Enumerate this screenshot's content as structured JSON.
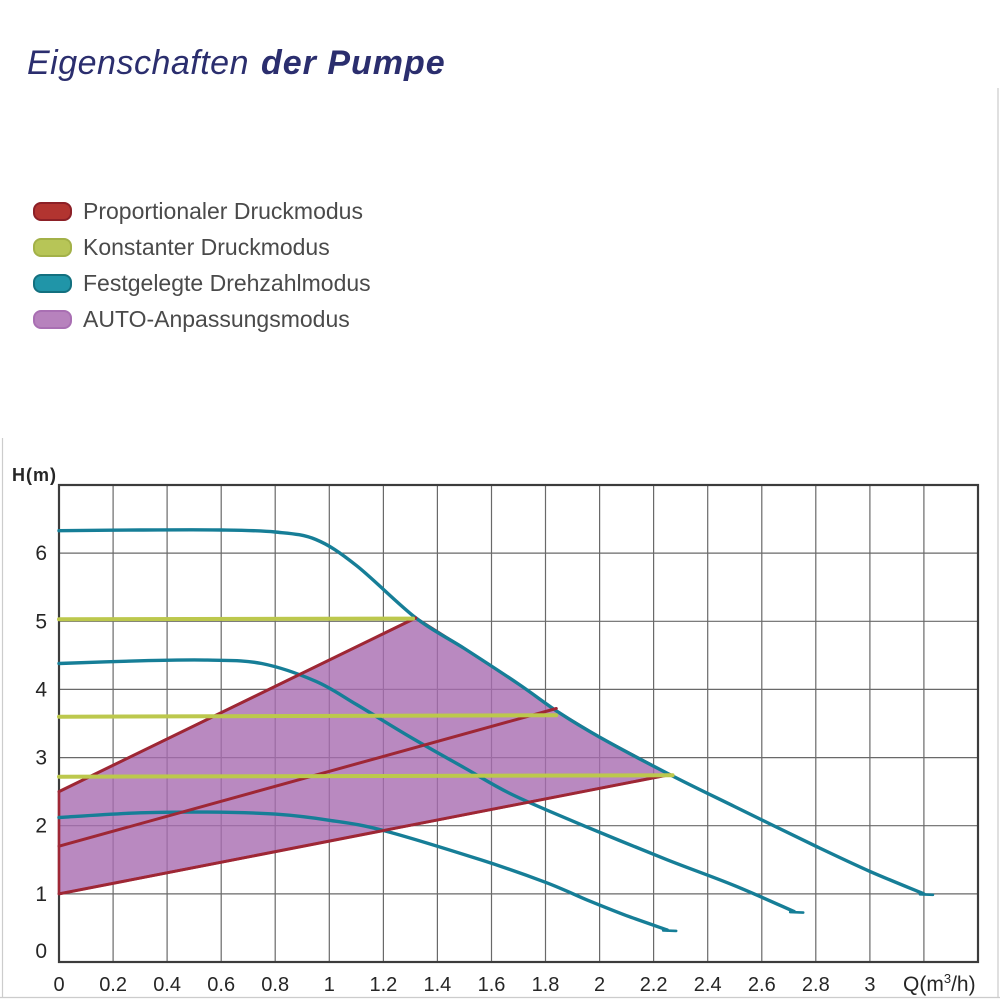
{
  "title": {
    "prefix": "Eigenschaften",
    "emphasis": "der Pumpe"
  },
  "legend": {
    "items": [
      {
        "label": "Proportionaler Druckmodus",
        "color": "#b23430",
        "border": "#8c2027"
      },
      {
        "label": "Konstanter Druckmodus",
        "color": "#b7c557",
        "border": "#a3b148"
      },
      {
        "label": "Festgelegte Drehzahlmodus",
        "color": "#2095a8",
        "border": "#13707f"
      },
      {
        "label": "AUTO-Anpassungsmodus",
        "color": "#b782bd",
        "border": "#a96fb3"
      }
    ]
  },
  "chart_data": {
    "type": "line",
    "title": "Eigenschaften der Pumpe",
    "xlabel": "Q(m³/h)",
    "ylabel": "H(m)",
    "xlim": [
      0,
      3.4
    ],
    "ylim": [
      0,
      7
    ],
    "grid": true,
    "grid_x_step": 0.2,
    "grid_y_step": 1,
    "x_ticks": {
      "values": [
        0,
        0.2,
        0.4,
        0.6,
        0.8,
        1,
        1.2,
        1.4,
        1.6,
        1.8,
        2,
        2.2,
        2.4,
        2.6,
        2.8,
        3
      ],
      "labels": [
        "0",
        "0.2",
        "0.4",
        "0.6",
        "0.8",
        "1",
        "1.2",
        "1.4",
        "1.6",
        "1.8",
        "2",
        "2.2",
        "2.4",
        "2.6",
        "2.8",
        "3"
      ]
    },
    "y_ticks": {
      "values": [
        0,
        1,
        2,
        3,
        4,
        5,
        6
      ],
      "labels": [
        "0",
        "1",
        "2",
        "3",
        "4",
        "5",
        "6"
      ]
    },
    "series": [
      {
        "name": "fixed-speed-max",
        "label": "Festgelegte Drehzahlmodus (max)",
        "color": "#167e97",
        "width": 3.4,
        "smooth": true,
        "end_tick": true,
        "points": [
          [
            0,
            6.33
          ],
          [
            0.3,
            6.34
          ],
          [
            0.6,
            6.34
          ],
          [
            0.8,
            6.31
          ],
          [
            0.95,
            6.2
          ],
          [
            1.1,
            5.82
          ],
          [
            1.32,
            5.05
          ],
          [
            1.5,
            4.6
          ],
          [
            1.7,
            4.08
          ],
          [
            1.85,
            3.66
          ],
          [
            2.0,
            3.3
          ],
          [
            2.26,
            2.75
          ],
          [
            2.5,
            2.28
          ],
          [
            2.8,
            1.7
          ],
          [
            3.0,
            1.33
          ],
          [
            3.2,
            1.0
          ]
        ]
      },
      {
        "name": "fixed-speed-mid",
        "label": "Festgelegte Drehzahlmodus (mittel)",
        "color": "#167e97",
        "width": 3.4,
        "smooth": true,
        "end_tick": true,
        "points": [
          [
            0,
            4.38
          ],
          [
            0.3,
            4.42
          ],
          [
            0.55,
            4.43
          ],
          [
            0.75,
            4.38
          ],
          [
            0.95,
            4.12
          ],
          [
            1.1,
            3.78
          ],
          [
            1.3,
            3.3
          ],
          [
            1.5,
            2.85
          ],
          [
            1.68,
            2.45
          ],
          [
            1.96,
            1.97
          ],
          [
            2.25,
            1.5
          ],
          [
            2.5,
            1.12
          ],
          [
            2.72,
            0.74
          ]
        ]
      },
      {
        "name": "fixed-speed-min",
        "label": "Festgelegte Drehzahlmodus (min)",
        "color": "#167e97",
        "width": 3.4,
        "smooth": true,
        "end_tick": true,
        "points": [
          [
            0,
            2.12
          ],
          [
            0.3,
            2.19
          ],
          [
            0.55,
            2.2
          ],
          [
            0.8,
            2.17
          ],
          [
            1.0,
            2.08
          ],
          [
            1.2,
            1.93
          ],
          [
            1.56,
            1.5
          ],
          [
            1.8,
            1.17
          ],
          [
            1.96,
            0.9
          ],
          [
            2.1,
            0.68
          ],
          [
            2.25,
            0.47
          ]
        ]
      },
      {
        "name": "proportional-max",
        "label": "Proportionaler Druckmodus (max)",
        "color": "#9e2735",
        "width": 3,
        "smooth": false,
        "end_tick": false,
        "points": [
          [
            0,
            2.5
          ],
          [
            1.32,
            5.05
          ]
        ]
      },
      {
        "name": "proportional-mid",
        "label": "Proportionaler Druckmodus (mittel)",
        "color": "#9e2735",
        "width": 3,
        "smooth": false,
        "end_tick": false,
        "points": [
          [
            0,
            1.7
          ],
          [
            1.84,
            3.72
          ]
        ]
      },
      {
        "name": "proportional-min",
        "label": "Proportionaler Druckmodus (min)",
        "color": "#9e2735",
        "width": 3,
        "smooth": false,
        "end_tick": false,
        "points": [
          [
            0,
            1.0
          ],
          [
            2.26,
            2.75
          ]
        ]
      },
      {
        "name": "constant-max",
        "label": "Konstanter Druckmodus (max)",
        "color": "#bcc84d",
        "width": 4,
        "smooth": false,
        "end_tick": false,
        "points": [
          [
            0,
            5.03
          ],
          [
            1.31,
            5.04
          ]
        ]
      },
      {
        "name": "constant-mid",
        "label": "Konstanter Druckmodus (mittel)",
        "color": "#bcc84d",
        "width": 4,
        "smooth": false,
        "end_tick": false,
        "points": [
          [
            0,
            3.6
          ],
          [
            1.84,
            3.62
          ]
        ]
      },
      {
        "name": "constant-min",
        "label": "Konstanter Druckmodus (min)",
        "color": "#bcc84d",
        "width": 4,
        "smooth": false,
        "end_tick": false,
        "points": [
          [
            0,
            2.72
          ],
          [
            2.27,
            2.74
          ]
        ]
      }
    ],
    "auto_region": {
      "label": "AUTO-Anpassungsmodus",
      "fill": "#a86bb0",
      "fill_opacity": 0.8,
      "stroke": "#9e2735",
      "points": [
        [
          0,
          1.0
        ],
        [
          0,
          2.5
        ],
        [
          1.32,
          5.05
        ],
        [
          1.5,
          4.6
        ],
        [
          1.7,
          4.08
        ],
        [
          1.85,
          3.66
        ],
        [
          2.0,
          3.3
        ],
        [
          2.26,
          2.75
        ]
      ]
    }
  },
  "colors": {
    "title": "#2b2e6e",
    "grid": "#4f4f4f",
    "frame": "#3c3c3c",
    "axis_text": "#262626",
    "legend_text": "#4a4a4a"
  }
}
